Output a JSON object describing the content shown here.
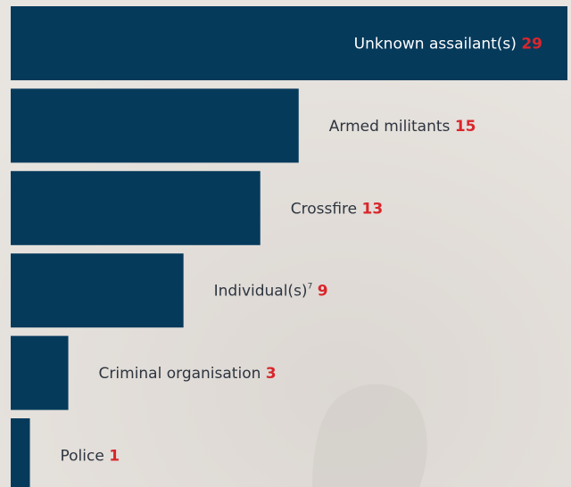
{
  "chart_data": {
    "type": "bar",
    "orientation": "horizontal",
    "categories": [
      "Unknown assailant(s)",
      "Armed militants",
      "Crossfire",
      "Individual(s)",
      "Criminal organisation",
      "Police"
    ],
    "category_notes": [
      null,
      null,
      null,
      "7",
      null,
      null
    ],
    "values": [
      29,
      15,
      13,
      9,
      3,
      1
    ],
    "color": "#063a5b",
    "value_color": "#d9262c"
  }
}
